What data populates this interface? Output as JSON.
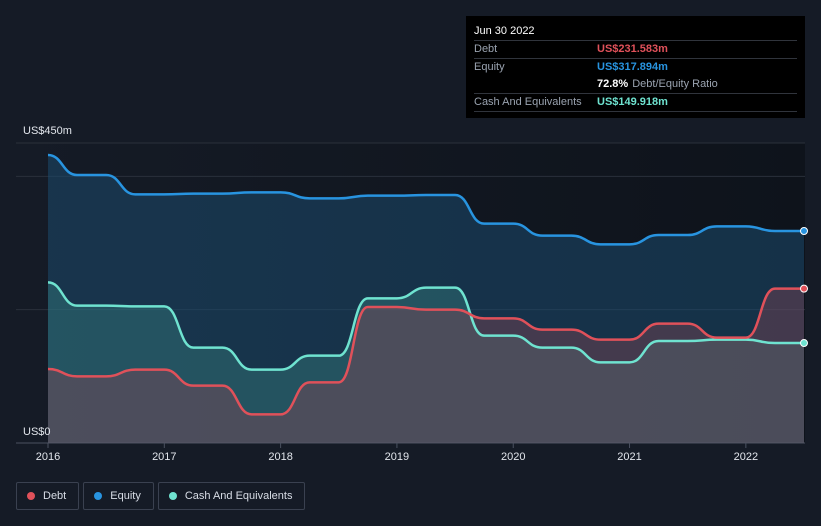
{
  "tooltip": {
    "date": "Jun 30 2022",
    "debt_label": "Debt",
    "debt_value": "US$231.583m",
    "equity_label": "Equity",
    "equity_value": "US$317.894m",
    "ratio_value": "72.8%",
    "ratio_label": "Debt/Equity Ratio",
    "cash_label": "Cash And Equivalents",
    "cash_value": "US$149.918m"
  },
  "legend": {
    "debt": "Debt",
    "equity": "Equity",
    "cash": "Cash And Equivalents"
  },
  "colors": {
    "debt": "#e0515a",
    "equity": "#2894e0",
    "cash": "#6fe3d0",
    "background": "#151b26"
  },
  "chart_data": {
    "type": "area",
    "ylabel_top": "US$450m",
    "ylabel_bottom": "US$0",
    "ylim": [
      0,
      450
    ],
    "xlim": [
      2016,
      2022.5
    ],
    "x_ticks": [
      "2016",
      "2017",
      "2018",
      "2019",
      "2020",
      "2021",
      "2022"
    ],
    "grid": true,
    "legend_position": "bottom-left",
    "series": [
      {
        "name": "Equity",
        "x": [
          2016.0,
          2016.25,
          2016.5,
          2016.75,
          2017.0,
          2017.25,
          2017.5,
          2017.75,
          2018.0,
          2018.25,
          2018.5,
          2018.75,
          2019.0,
          2019.25,
          2019.5,
          2019.75,
          2020.0,
          2020.25,
          2020.5,
          2020.75,
          2021.0,
          2021.25,
          2021.5,
          2021.75,
          2022.0,
          2022.25,
          2022.5
        ],
        "values": [
          432,
          402,
          402,
          373,
          373,
          374,
          374,
          376,
          376,
          367,
          367,
          371,
          371,
          372,
          372,
          329,
          329,
          311,
          311,
          298,
          298,
          312,
          312,
          325,
          325,
          318,
          318
        ]
      },
      {
        "name": "Debt",
        "x": [
          2016.0,
          2016.25,
          2016.5,
          2016.75,
          2017.0,
          2017.25,
          2017.5,
          2017.75,
          2018.0,
          2018.25,
          2018.5,
          2018.75,
          2019.0,
          2019.25,
          2019.5,
          2019.75,
          2020.0,
          2020.25,
          2020.5,
          2020.75,
          2021.0,
          2021.25,
          2021.5,
          2021.75,
          2022.0,
          2022.25,
          2022.5
        ],
        "values": [
          111,
          100,
          100,
          110,
          110,
          86,
          86,
          43,
          43,
          91,
          91,
          204,
          204,
          200,
          200,
          187,
          187,
          170,
          170,
          155,
          155,
          179,
          179,
          158,
          158,
          231.583,
          231.583
        ]
      },
      {
        "name": "Cash And Equivalents",
        "x": [
          2016.0,
          2016.25,
          2016.5,
          2016.75,
          2017.0,
          2017.25,
          2017.5,
          2017.75,
          2018.0,
          2018.25,
          2018.5,
          2018.75,
          2019.0,
          2019.25,
          2019.5,
          2019.75,
          2020.0,
          2020.25,
          2020.5,
          2020.75,
          2021.0,
          2021.25,
          2021.5,
          2021.75,
          2022.0,
          2022.25,
          2022.5
        ],
        "values": [
          241,
          206,
          206,
          205,
          205,
          143,
          143,
          110,
          110,
          131,
          131,
          217,
          217,
          233,
          233,
          161,
          161,
          143,
          143,
          121,
          121,
          153,
          153,
          155,
          155,
          149.918,
          149.918
        ]
      }
    ]
  }
}
